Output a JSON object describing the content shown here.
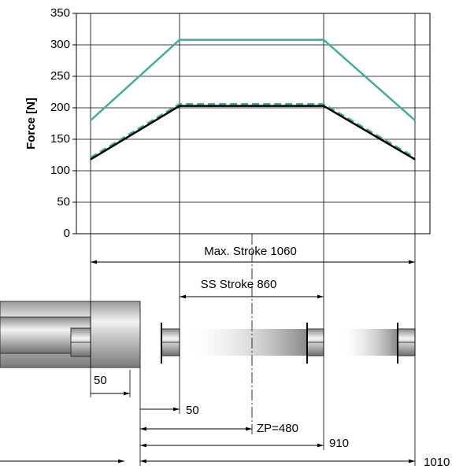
{
  "chart_data": {
    "type": "line",
    "y_label": "Force [N]",
    "categories": [
      null,
      null,
      null,
      null
    ],
    "series": [
      {
        "color": "#3fae98",
        "line_style": "solid",
        "values": [
          180,
          308,
          308,
          180
        ]
      },
      {
        "color": "#3fae98",
        "line_style": "dashed",
        "values": [
          121,
          206,
          206,
          121
        ]
      },
      {
        "color": "#000000",
        "line_style": "solid",
        "values": [
          118,
          203,
          203,
          118
        ]
      }
    ],
    "ylim": [
      0,
      350
    ],
    "yticks": [
      0,
      50,
      100,
      150,
      200,
      250,
      300,
      350
    ],
    "grid": true
  },
  "dimensions": {
    "max_stroke": "Max. Stroke 1060",
    "ss_stroke": "SS Stroke 860",
    "offset_rod": "50",
    "offset_start": "50",
    "zero_point": "ZP=480",
    "end_ss": "910",
    "end_max": "1010"
  }
}
